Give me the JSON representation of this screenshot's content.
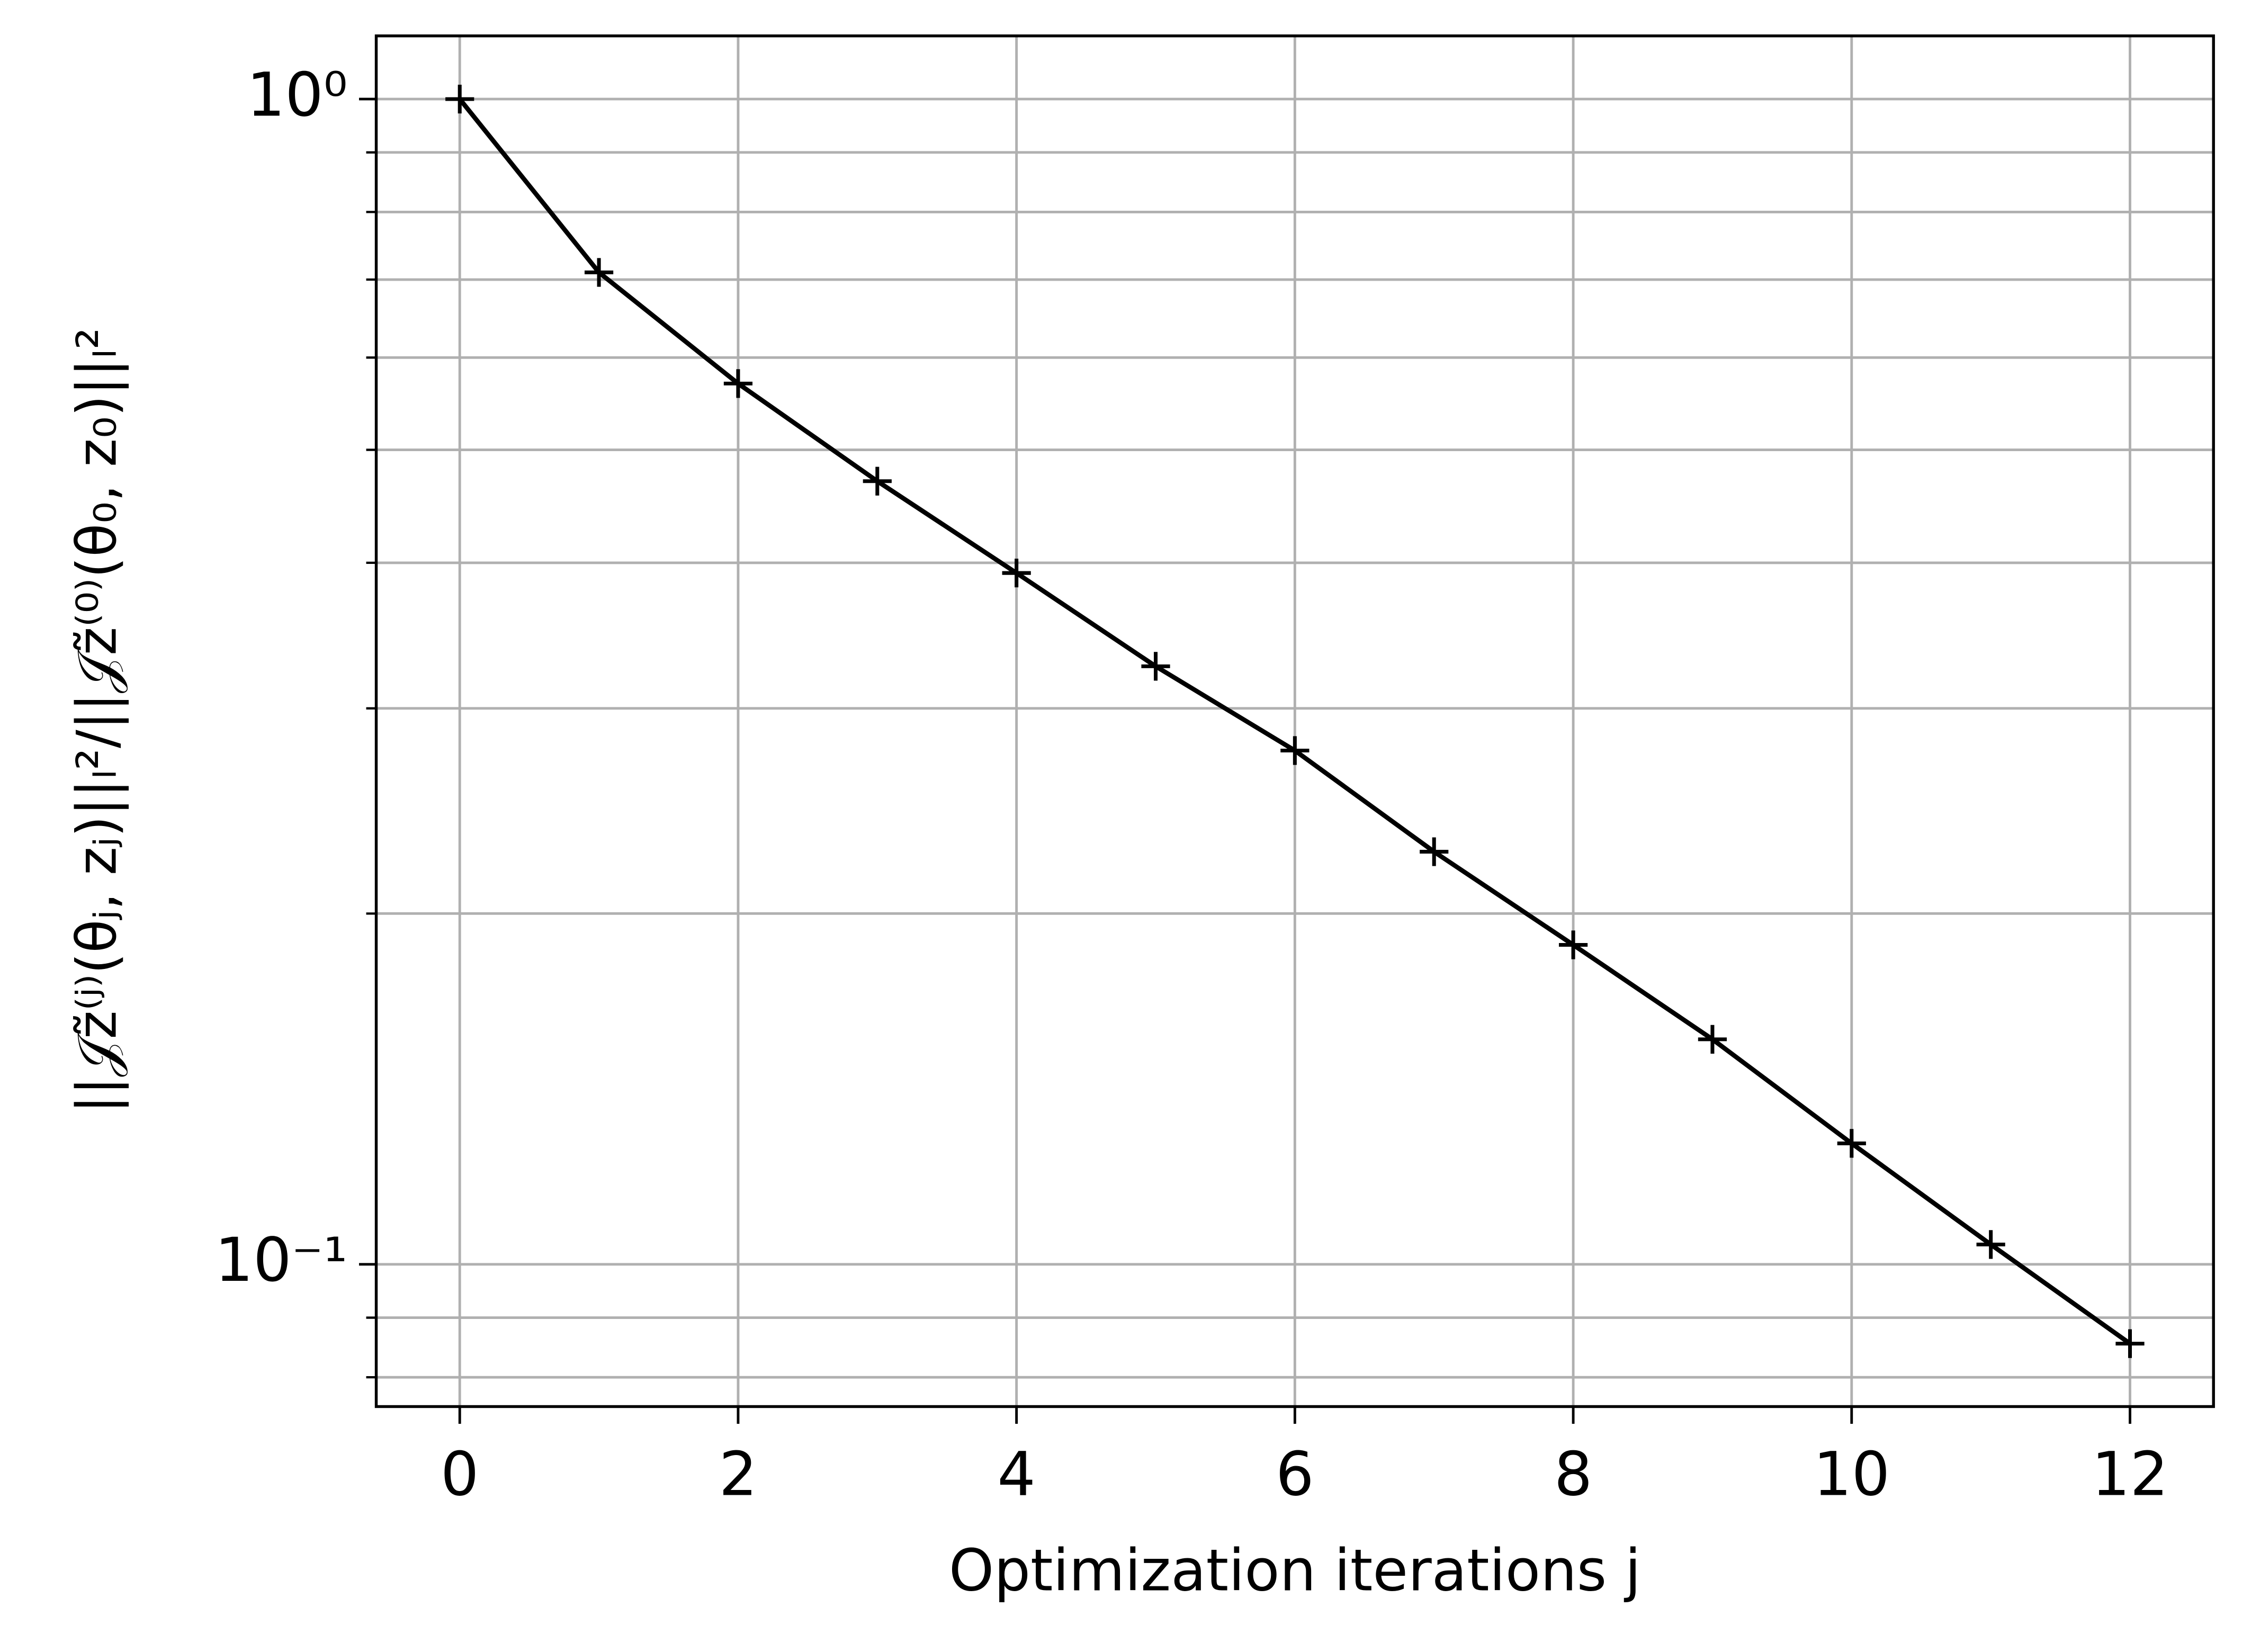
{
  "chart_data": {
    "type": "line",
    "x_label": "Optimization iterations j",
    "y_label": "||𝒥z̃⁽ʲ⁾(θⱼ, zⱼ)||ₗ²/||𝒥z̃⁽⁰⁾(θ₀, z₀)||ₗ²",
    "x": [
      0,
      1,
      2,
      3,
      4,
      5,
      6,
      7,
      8,
      9,
      10,
      11,
      12
    ],
    "values": [
      1.0,
      0.71,
      0.57,
      0.47,
      0.392,
      0.326,
      0.276,
      0.226,
      0.188,
      0.156,
      0.127,
      0.104,
      0.0855
    ],
    "color": "#000000",
    "marker": "+",
    "xlim": [
      -0.6,
      12.6
    ],
    "ylim": [
      0.0755,
      1.133
    ],
    "ylog": true,
    "xticks": [
      0,
      2,
      4,
      6,
      8,
      10,
      12
    ],
    "yticks": [
      {
        "value": 0.1,
        "label": "10⁻¹"
      },
      {
        "value": 1,
        "label": "10⁰"
      }
    ],
    "yminorticks": [
      0.08,
      0.09,
      0.2,
      0.3,
      0.4,
      0.5,
      0.6,
      0.7,
      0.8,
      0.9
    ],
    "grid": true
  }
}
